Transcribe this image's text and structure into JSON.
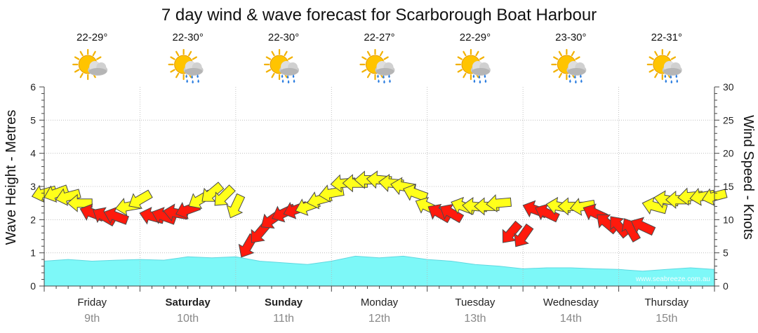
{
  "chart_data": {
    "type": "area",
    "title": "7 day wind & wave forecast for Scarborough Boat Harbour",
    "y_left_label": "Wave Height - Metres",
    "y_right_label": "Wind Speed - Knots",
    "y_left_range": [
      0,
      6
    ],
    "y_left_ticks": [
      "0",
      "1",
      "2",
      "3",
      "4",
      "5",
      "6"
    ],
    "y_right_range": [
      0,
      30
    ],
    "y_right_ticks": [
      "0",
      "5",
      "10",
      "15",
      "20",
      "25",
      "30"
    ],
    "grid": true,
    "watermark": "www.seabreeze.com.au",
    "days": [
      {
        "name": "Friday",
        "date": "9th",
        "bold": false,
        "temp": "22-29°",
        "icon": "partly-cloudy-icon"
      },
      {
        "name": "Saturday",
        "date": "10th",
        "bold": true,
        "temp": "22-30°",
        "icon": "showers-icon"
      },
      {
        "name": "Sunday",
        "date": "11th",
        "bold": true,
        "temp": "22-30°",
        "icon": "showers-icon"
      },
      {
        "name": "Monday",
        "date": "12th",
        "bold": false,
        "temp": "22-27°",
        "icon": "showers-icon"
      },
      {
        "name": "Tuesday",
        "date": "13th",
        "bold": false,
        "temp": "22-29°",
        "icon": "showers-icon"
      },
      {
        "name": "Wednesday",
        "date": "14th",
        "bold": false,
        "temp": "23-30°",
        "icon": "showers-icon"
      },
      {
        "name": "Thursday",
        "date": "15th",
        "bold": false,
        "temp": "22-31°",
        "icon": "showers-icon"
      }
    ],
    "wave_series": {
      "name": "Wave Height",
      "color": "#7df8f8",
      "x_days": [
        0,
        0.25,
        0.5,
        0.75,
        1,
        1.25,
        1.5,
        1.75,
        2,
        2.25,
        2.5,
        2.75,
        3,
        3.25,
        3.5,
        3.75,
        4,
        4.25,
        4.5,
        4.75,
        5,
        5.25,
        5.5,
        5.75,
        6,
        6.25,
        6.5,
        6.75,
        7
      ],
      "values": [
        0.75,
        0.8,
        0.75,
        0.78,
        0.8,
        0.78,
        0.88,
        0.85,
        0.88,
        0.75,
        0.7,
        0.65,
        0.75,
        0.9,
        0.85,
        0.9,
        0.8,
        0.75,
        0.65,
        0.6,
        0.52,
        0.55,
        0.55,
        0.52,
        0.5,
        0.45,
        0.5,
        0.55,
        0.5
      ]
    },
    "wind_series": {
      "name": "Wind",
      "x_days": [
        0,
        0.125,
        0.25,
        0.375,
        0.5,
        0.625,
        0.75,
        0.875,
        1,
        1.125,
        1.25,
        1.375,
        1.5,
        1.625,
        1.75,
        1.875,
        2,
        2.125,
        2.25,
        2.375,
        2.5,
        2.625,
        2.75,
        2.875,
        3,
        3.125,
        3.25,
        3.375,
        3.5,
        3.625,
        3.75,
        3.875,
        4,
        4.125,
        4.25,
        4.375,
        4.5,
        4.625,
        4.75,
        4.875,
        5,
        5.125,
        5.25,
        5.375,
        5.5,
        5.625,
        5.75,
        5.875,
        6,
        6.125,
        6.25,
        6.375,
        6.5,
        6.625,
        6.75,
        6.875,
        7
      ],
      "knots": [
        14,
        14,
        13.5,
        12.5,
        11,
        10.5,
        10.5,
        12,
        13,
        10.5,
        10.5,
        11,
        11.5,
        13,
        14,
        13.5,
        12,
        6,
        8,
        10,
        11,
        11.5,
        12,
        13,
        14,
        15.5,
        15.5,
        16,
        16,
        15.5,
        15,
        14,
        12,
        11,
        11,
        12,
        12,
        12,
        12.5,
        8,
        7.5,
        11.5,
        11,
        12,
        12,
        12,
        11,
        9.5,
        9,
        8.5,
        9,
        12,
        13,
        13,
        13.5,
        13.5,
        13.5
      ],
      "direction_deg": [
        75,
        70,
        75,
        90,
        110,
        120,
        110,
        80,
        60,
        105,
        110,
        100,
        70,
        60,
        50,
        45,
        25,
        30,
        40,
        55,
        65,
        70,
        70,
        75,
        80,
        85,
        90,
        90,
        95,
        95,
        100,
        110,
        115,
        120,
        120,
        110,
        95,
        90,
        85,
        40,
        35,
        110,
        115,
        100,
        90,
        80,
        115,
        130,
        140,
        150,
        115,
        105,
        100,
        90,
        85,
        80,
        75
      ]
    }
  }
}
